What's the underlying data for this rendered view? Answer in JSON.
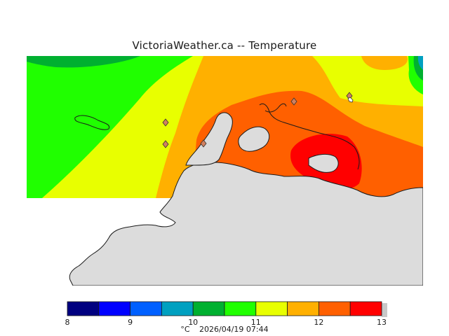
{
  "title": "VictoriaWeather.ca -- Temperature",
  "map": {
    "variable": "Temperature",
    "unit": "°C",
    "timestamp": "2026/04/19 07:44",
    "land_color": "#dcdcdc",
    "coast_color": "#1a1a1a",
    "stations": [
      {
        "id": "station-1"
      },
      {
        "id": "station-2"
      },
      {
        "id": "station-3"
      },
      {
        "id": "station-4"
      },
      {
        "id": "station-5"
      }
    ]
  },
  "legend": {
    "bins": [
      {
        "from": 8.0,
        "to": 8.5,
        "color": "#000080"
      },
      {
        "from": 8.5,
        "to": 9.0,
        "color": "#0000ff"
      },
      {
        "from": 9.0,
        "to": 9.5,
        "color": "#0060ff"
      },
      {
        "from": 9.5,
        "to": 10.0,
        "color": "#00a0c0"
      },
      {
        "from": 10.0,
        "to": 10.5,
        "color": "#00b030"
      },
      {
        "from": 10.5,
        "to": 11.0,
        "color": "#20ff00"
      },
      {
        "from": 11.0,
        "to": 11.5,
        "color": "#e8ff00"
      },
      {
        "from": 11.5,
        "to": 12.0,
        "color": "#ffb000"
      },
      {
        "from": 12.0,
        "to": 12.5,
        "color": "#ff6000"
      },
      {
        "from": 12.5,
        "to": 13.0,
        "color": "#ff0000"
      }
    ],
    "ticks": [
      "8",
      "9",
      "10",
      "11",
      "12",
      "13"
    ]
  }
}
